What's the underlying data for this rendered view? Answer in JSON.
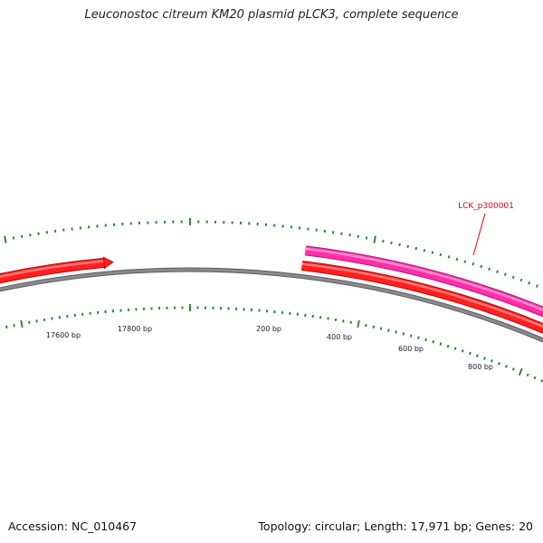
{
  "title": "Leuconostoc citreum KM20 plasmid pLCK3, complete sequence",
  "footer": {
    "accession": "Accession: NC_010467",
    "summary": "Topology: circular; Length: 17,971 bp; Genes: 20"
  },
  "map": {
    "genome_length_bp": 17971,
    "tick_labels": [
      "17600 bp",
      "17800 bp",
      "200 bp",
      "400 bp",
      "600 bp",
      "800 bp"
    ],
    "gene_label": "LCK_p300001",
    "colors": {
      "backbone": "#8a8a8a",
      "tick": "#2e8b2e",
      "cds": "#ff2020",
      "gene": "#ff2fa8",
      "gene_label": "#e60000"
    }
  }
}
